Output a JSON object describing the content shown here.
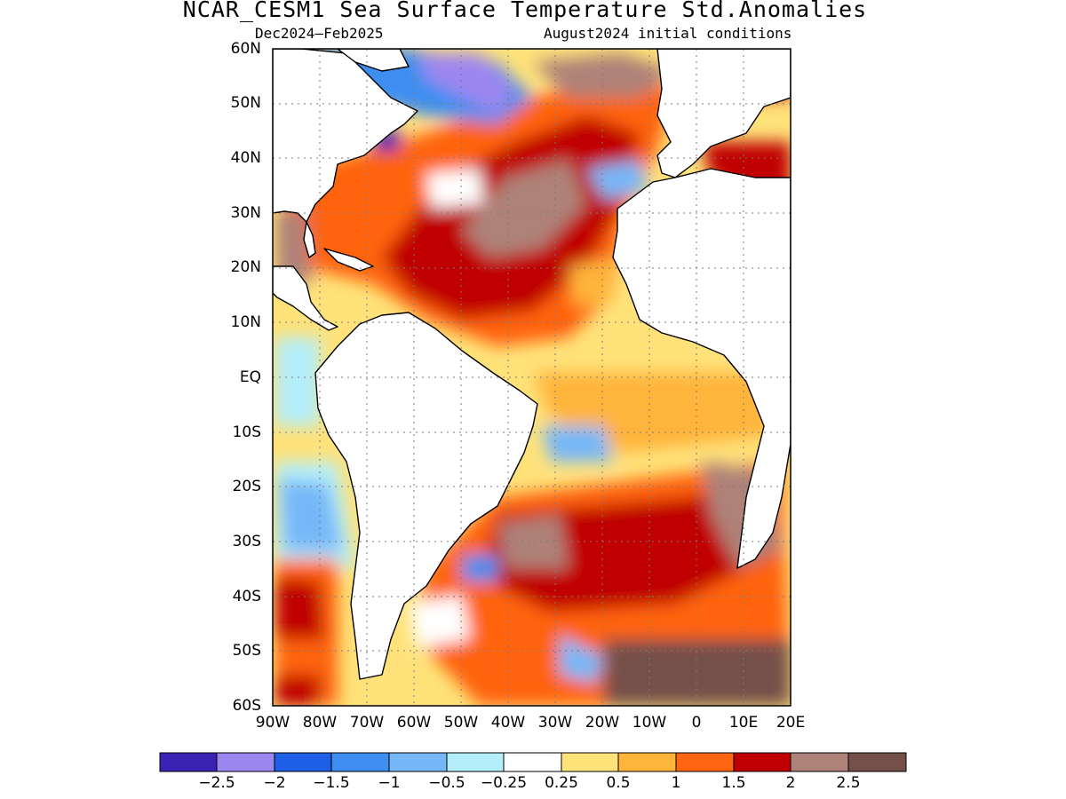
{
  "header": {
    "title": "NCAR_CESM1 Sea Surface Temperature Std.Anomalies",
    "period": "Dec2024–Feb2025",
    "init": "August2024 initial conditions"
  },
  "map": {
    "lat_labels": [
      "60N",
      "50N",
      "40N",
      "30N",
      "20N",
      "10N",
      "EQ",
      "10S",
      "20S",
      "30S",
      "40S",
      "50S",
      "60S"
    ],
    "lon_labels": [
      "90W",
      "80W",
      "70W",
      "60W",
      "50W",
      "40W",
      "30W",
      "20W",
      "10W",
      "0",
      "10E",
      "20E"
    ],
    "gridlines": "dotted",
    "colorbar": {
      "colors": [
        "#3a23b4",
        "#9c86f0",
        "#1f5ee6",
        "#3d8ef0",
        "#76b7f8",
        "#b4eefa",
        "#ffffff",
        "#ffe27a",
        "#ffb43a",
        "#ff6410",
        "#c00000",
        "#ae8278",
        "#75504a"
      ],
      "labels": [
        "−2.5",
        "−2",
        "−1.5",
        "−1",
        "−0.5",
        "−0.25",
        "0.25",
        "0.5",
        "1",
        "1.5",
        "2",
        "2.5"
      ]
    }
  }
}
